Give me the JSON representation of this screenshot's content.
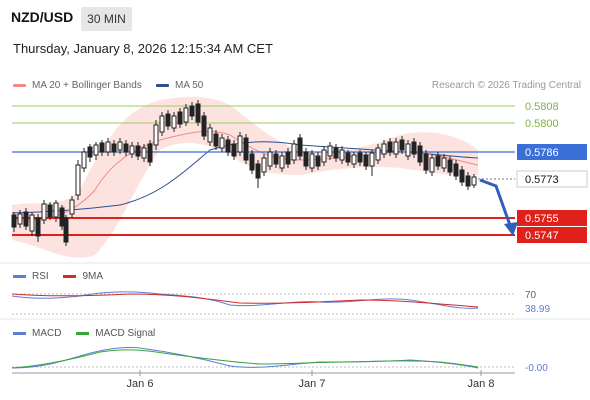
{
  "header": {
    "pair": "NZD/USD",
    "timeframe": "30 MIN",
    "datetime": "Thursday, January 8, 2026 12:15:34 AM CET"
  },
  "legend": {
    "ma20": "MA 20 + Bollinger Bands",
    "ma50": "MA 50",
    "credit": "Research © 2026 Trading Central",
    "ma20_color": "#f08a8a",
    "ma50_color": "#2f4f8f"
  },
  "levels": {
    "r2": "0.5808",
    "r1": "0.5800",
    "pivot": "0.5786",
    "last": "0.5773",
    "s1": "0.5755",
    "s2": "0.5747",
    "resistance_color": "#7cb342",
    "pivot_color": "#3b6fd8",
    "support_color": "#e0201b"
  },
  "rsi": {
    "label": "RSI",
    "ma_label": "9MA",
    "level": "70",
    "value": "38.99"
  },
  "macd": {
    "label": "MACD",
    "signal_label": "MACD Signal",
    "value": "-0.00"
  },
  "xaxis": {
    "labels": [
      "Jan 6",
      "Jan 7",
      "Jan 8"
    ]
  }
}
